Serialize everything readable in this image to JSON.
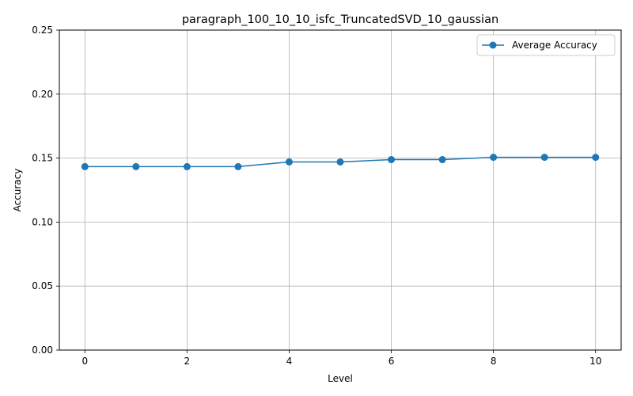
{
  "chart_data": {
    "type": "line",
    "title": "paragraph_100_10_10_isfc_TruncatedSVD_10_gaussian",
    "xlabel": "Level",
    "ylabel": "Accuracy",
    "xlim": [
      -0.5,
      10.5
    ],
    "ylim": [
      0,
      0.25
    ],
    "xticks": [
      0,
      2,
      4,
      6,
      8,
      10
    ],
    "yticks": [
      0.0,
      0.05,
      0.1,
      0.15,
      0.2,
      0.25
    ],
    "ytick_labels": [
      "0.00",
      "0.05",
      "0.10",
      "0.15",
      "0.20",
      "0.25"
    ],
    "grid": true,
    "legend_position": "top-right",
    "series": [
      {
        "name": "Average Accuracy",
        "color": "#1f77b4",
        "marker": "circle",
        "x": [
          0,
          1,
          2,
          3,
          4,
          5,
          6,
          7,
          8,
          9,
          10
        ],
        "values": [
          0.1433,
          0.1433,
          0.1433,
          0.1433,
          0.147,
          0.147,
          0.1488,
          0.1488,
          0.1506,
          0.1506,
          0.1506
        ]
      }
    ]
  }
}
